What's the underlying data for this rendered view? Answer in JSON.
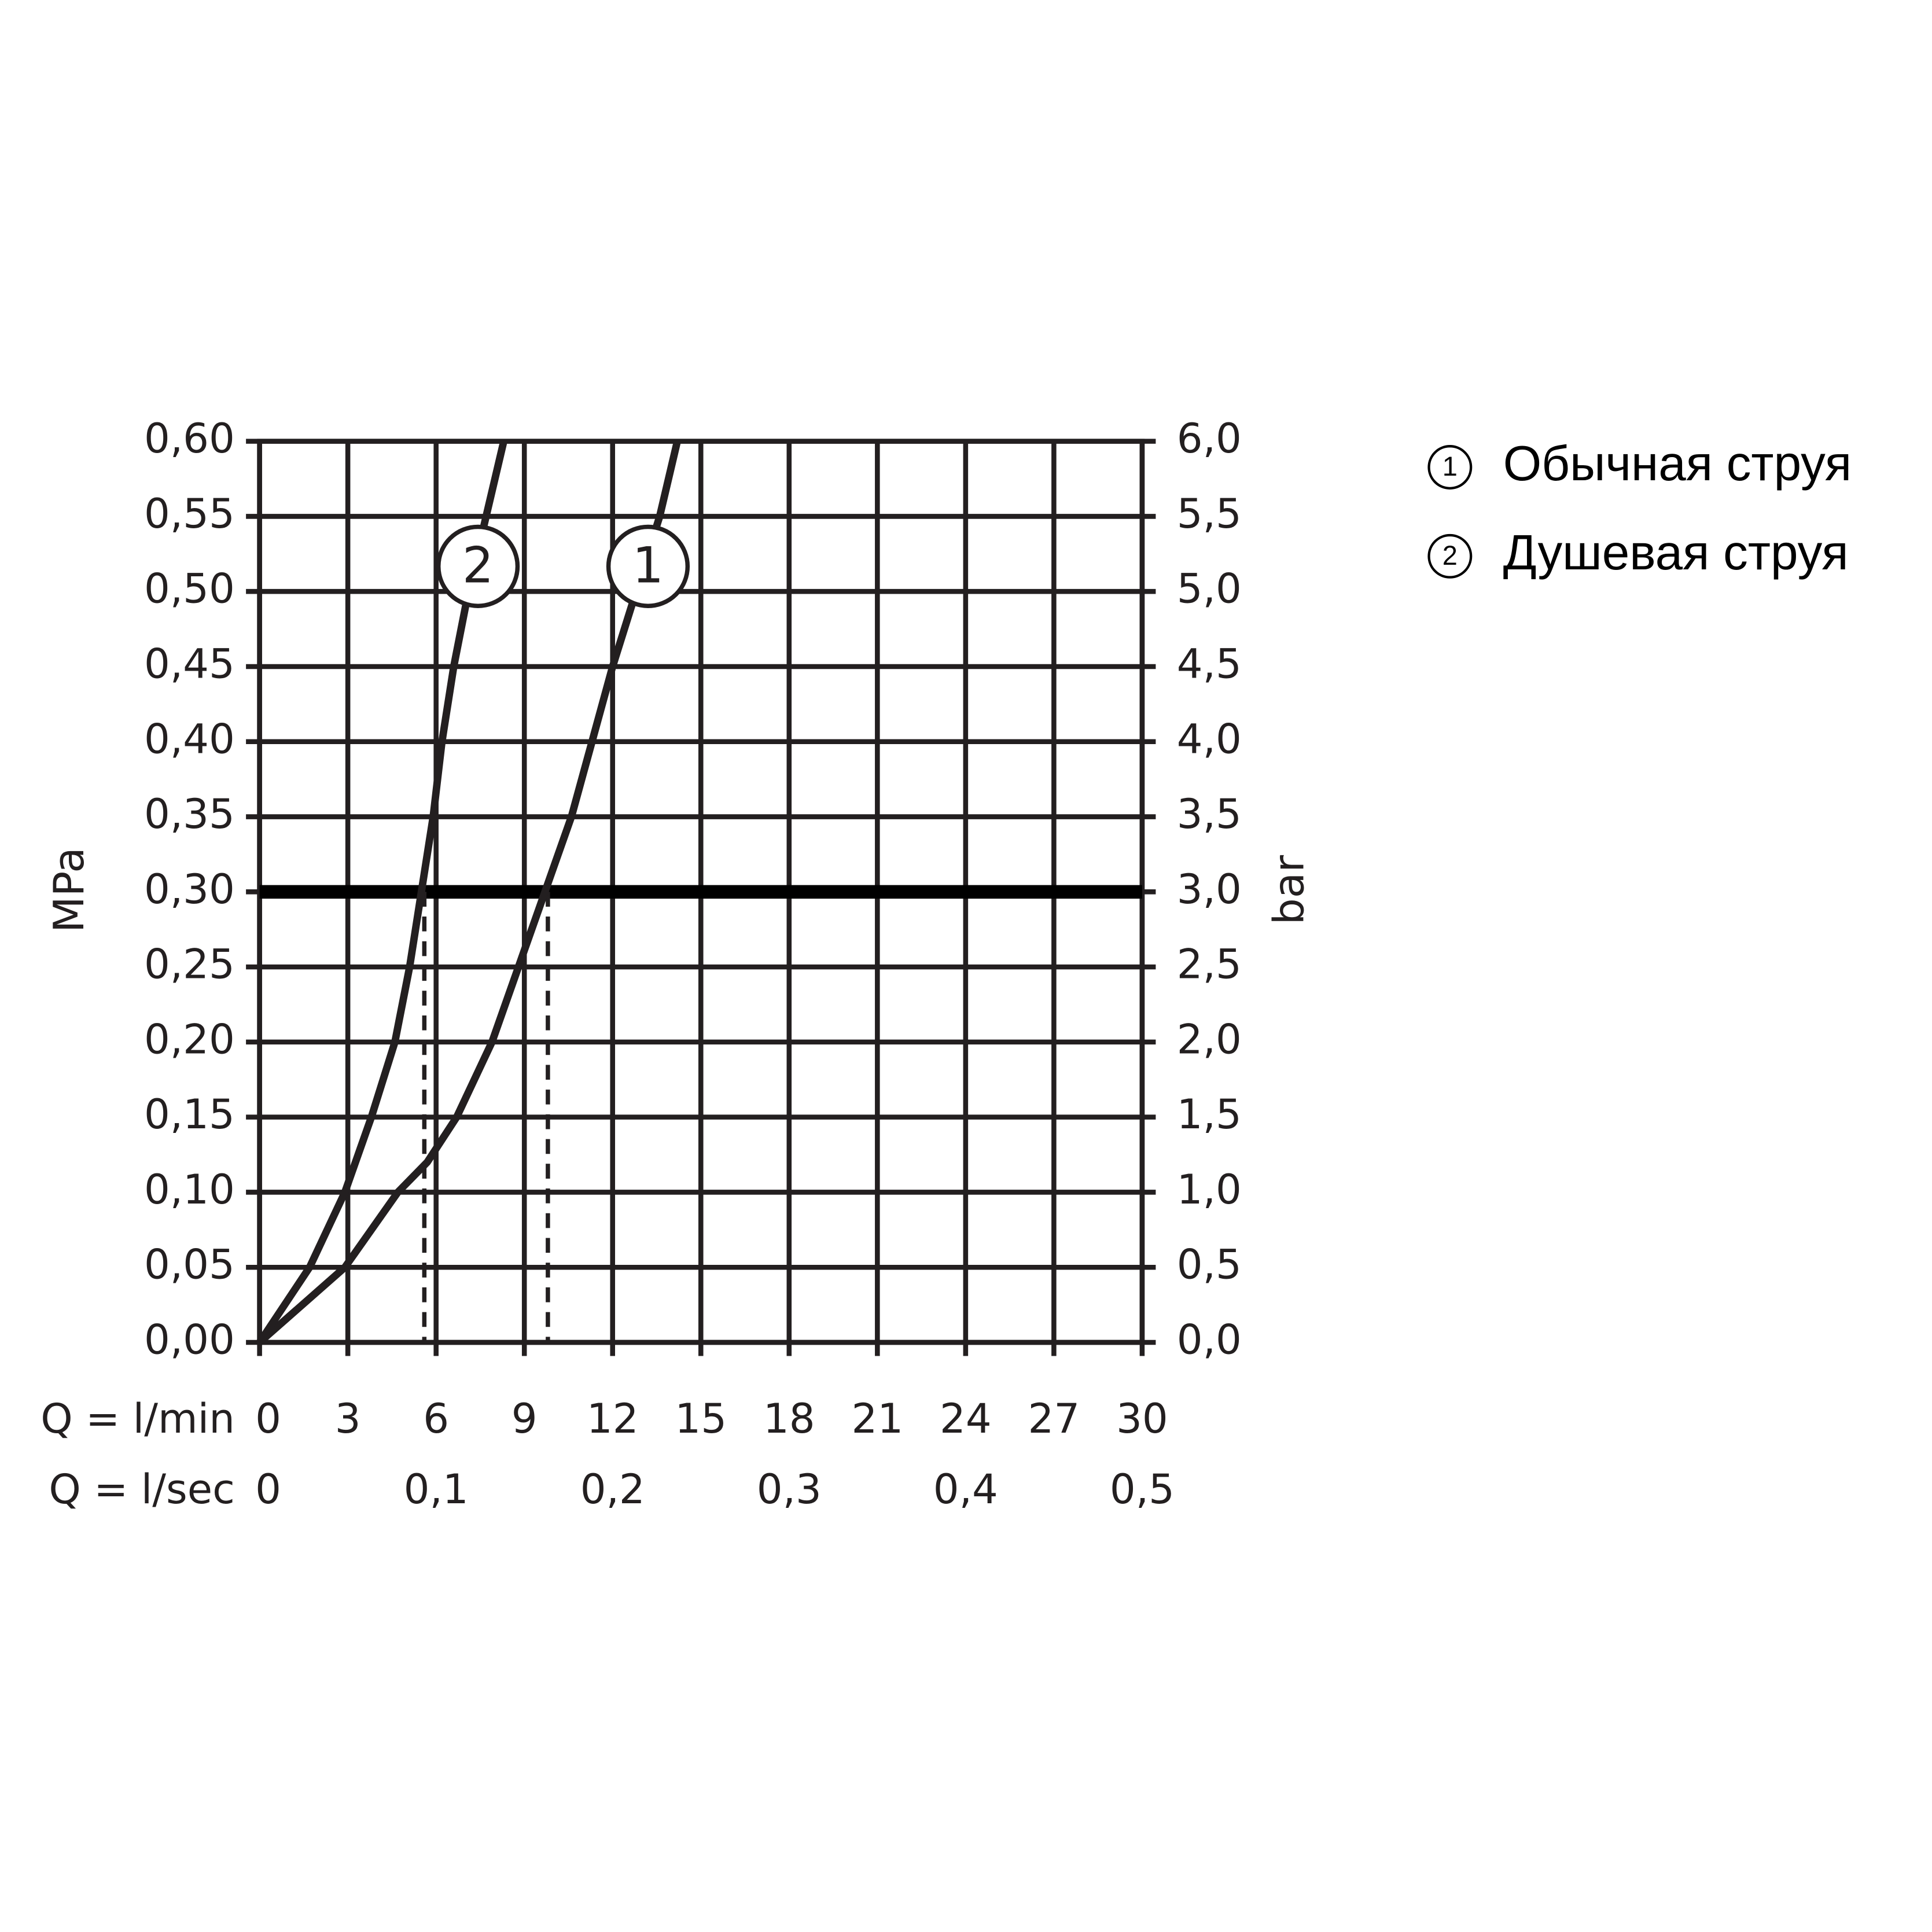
{
  "chart_data": {
    "type": "line",
    "x_label": "Q = l/min",
    "x2_label": "Q = l/sec",
    "y_label": "MPa",
    "y2_label": "bar",
    "xlim": [
      0,
      30
    ],
    "xticks": [
      0,
      3,
      6,
      9,
      12,
      15,
      18,
      21,
      24,
      27,
      30
    ],
    "x2ticks": [
      0,
      {
        "value": 6,
        "label": "0,1"
      },
      {
        "value": 12,
        "label": "0,2"
      },
      {
        "value": 18,
        "label": "0,3"
      },
      {
        "value": 24,
        "label": "0,4"
      },
      {
        "value": 30,
        "label": "0,5"
      }
    ],
    "ylim": [
      0,
      0.6
    ],
    "yticks": [
      {
        "value": 0,
        "label": "0,00"
      },
      {
        "value": 0.05,
        "label": "0,05"
      },
      {
        "value": 0.1,
        "label": "0,10"
      },
      {
        "value": 0.15,
        "label": "0,15"
      },
      {
        "value": 0.2,
        "label": "0,20"
      },
      {
        "value": 0.25,
        "label": "0,25"
      },
      {
        "value": 0.3,
        "label": "0,30"
      },
      {
        "value": 0.35,
        "label": "0,35"
      },
      {
        "value": 0.4,
        "label": "0,40"
      },
      {
        "value": 0.45,
        "label": "0,45"
      },
      {
        "value": 0.5,
        "label": "0,50"
      },
      {
        "value": 0.55,
        "label": "0,55"
      },
      {
        "value": 0.6,
        "label": "0,60"
      }
    ],
    "y2lim": [
      0,
      6
    ],
    "y2ticks": [
      {
        "value": 0,
        "label": "0,0"
      },
      {
        "value": 0.5,
        "label": "0,5"
      },
      {
        "value": 1,
        "label": "1,0"
      },
      {
        "value": 1.5,
        "label": "1,5"
      },
      {
        "value": 2,
        "label": "2,0"
      },
      {
        "value": 2.5,
        "label": "2,5"
      },
      {
        "value": 3,
        "label": "3,0"
      },
      {
        "value": 3.5,
        "label": "3,5"
      },
      {
        "value": 4,
        "label": "4,0"
      },
      {
        "value": 4.5,
        "label": "4,5"
      },
      {
        "value": 5,
        "label": "5,0"
      },
      {
        "value": 5.5,
        "label": "5,5"
      },
      {
        "value": 6,
        "label": "6,0"
      }
    ],
    "grid": true,
    "reference_line": 0.3,
    "dashed_lines": [
      5.6,
      9.8
    ],
    "series": [
      {
        "name": "Обычная струя",
        "marker_label": "1",
        "color": "#231f20",
        "x": [
          0,
          2.9,
          4.7,
          5.7,
          6.7,
          7.9,
          8.8,
          9.7,
          10.6,
          11.3,
          12.0,
          12.8,
          13.6,
          14.2
        ],
        "values": [
          0,
          0.05,
          0.1,
          0.12,
          0.15,
          0.2,
          0.25,
          0.3,
          0.35,
          0.4,
          0.45,
          0.5,
          0.55,
          0.6
        ]
      },
      {
        "name": "Душевая струя",
        "marker_label": "2",
        "color": "#231f20",
        "x": [
          0,
          1.7,
          2.9,
          3.8,
          4.6,
          5.1,
          5.5,
          5.9,
          6.2,
          6.6,
          7.1,
          7.7,
          8.3
        ],
        "values": [
          0,
          0.05,
          0.1,
          0.15,
          0.2,
          0.25,
          0.3,
          0.35,
          0.4,
          0.45,
          0.5,
          0.55,
          0.6
        ]
      }
    ]
  }
}
